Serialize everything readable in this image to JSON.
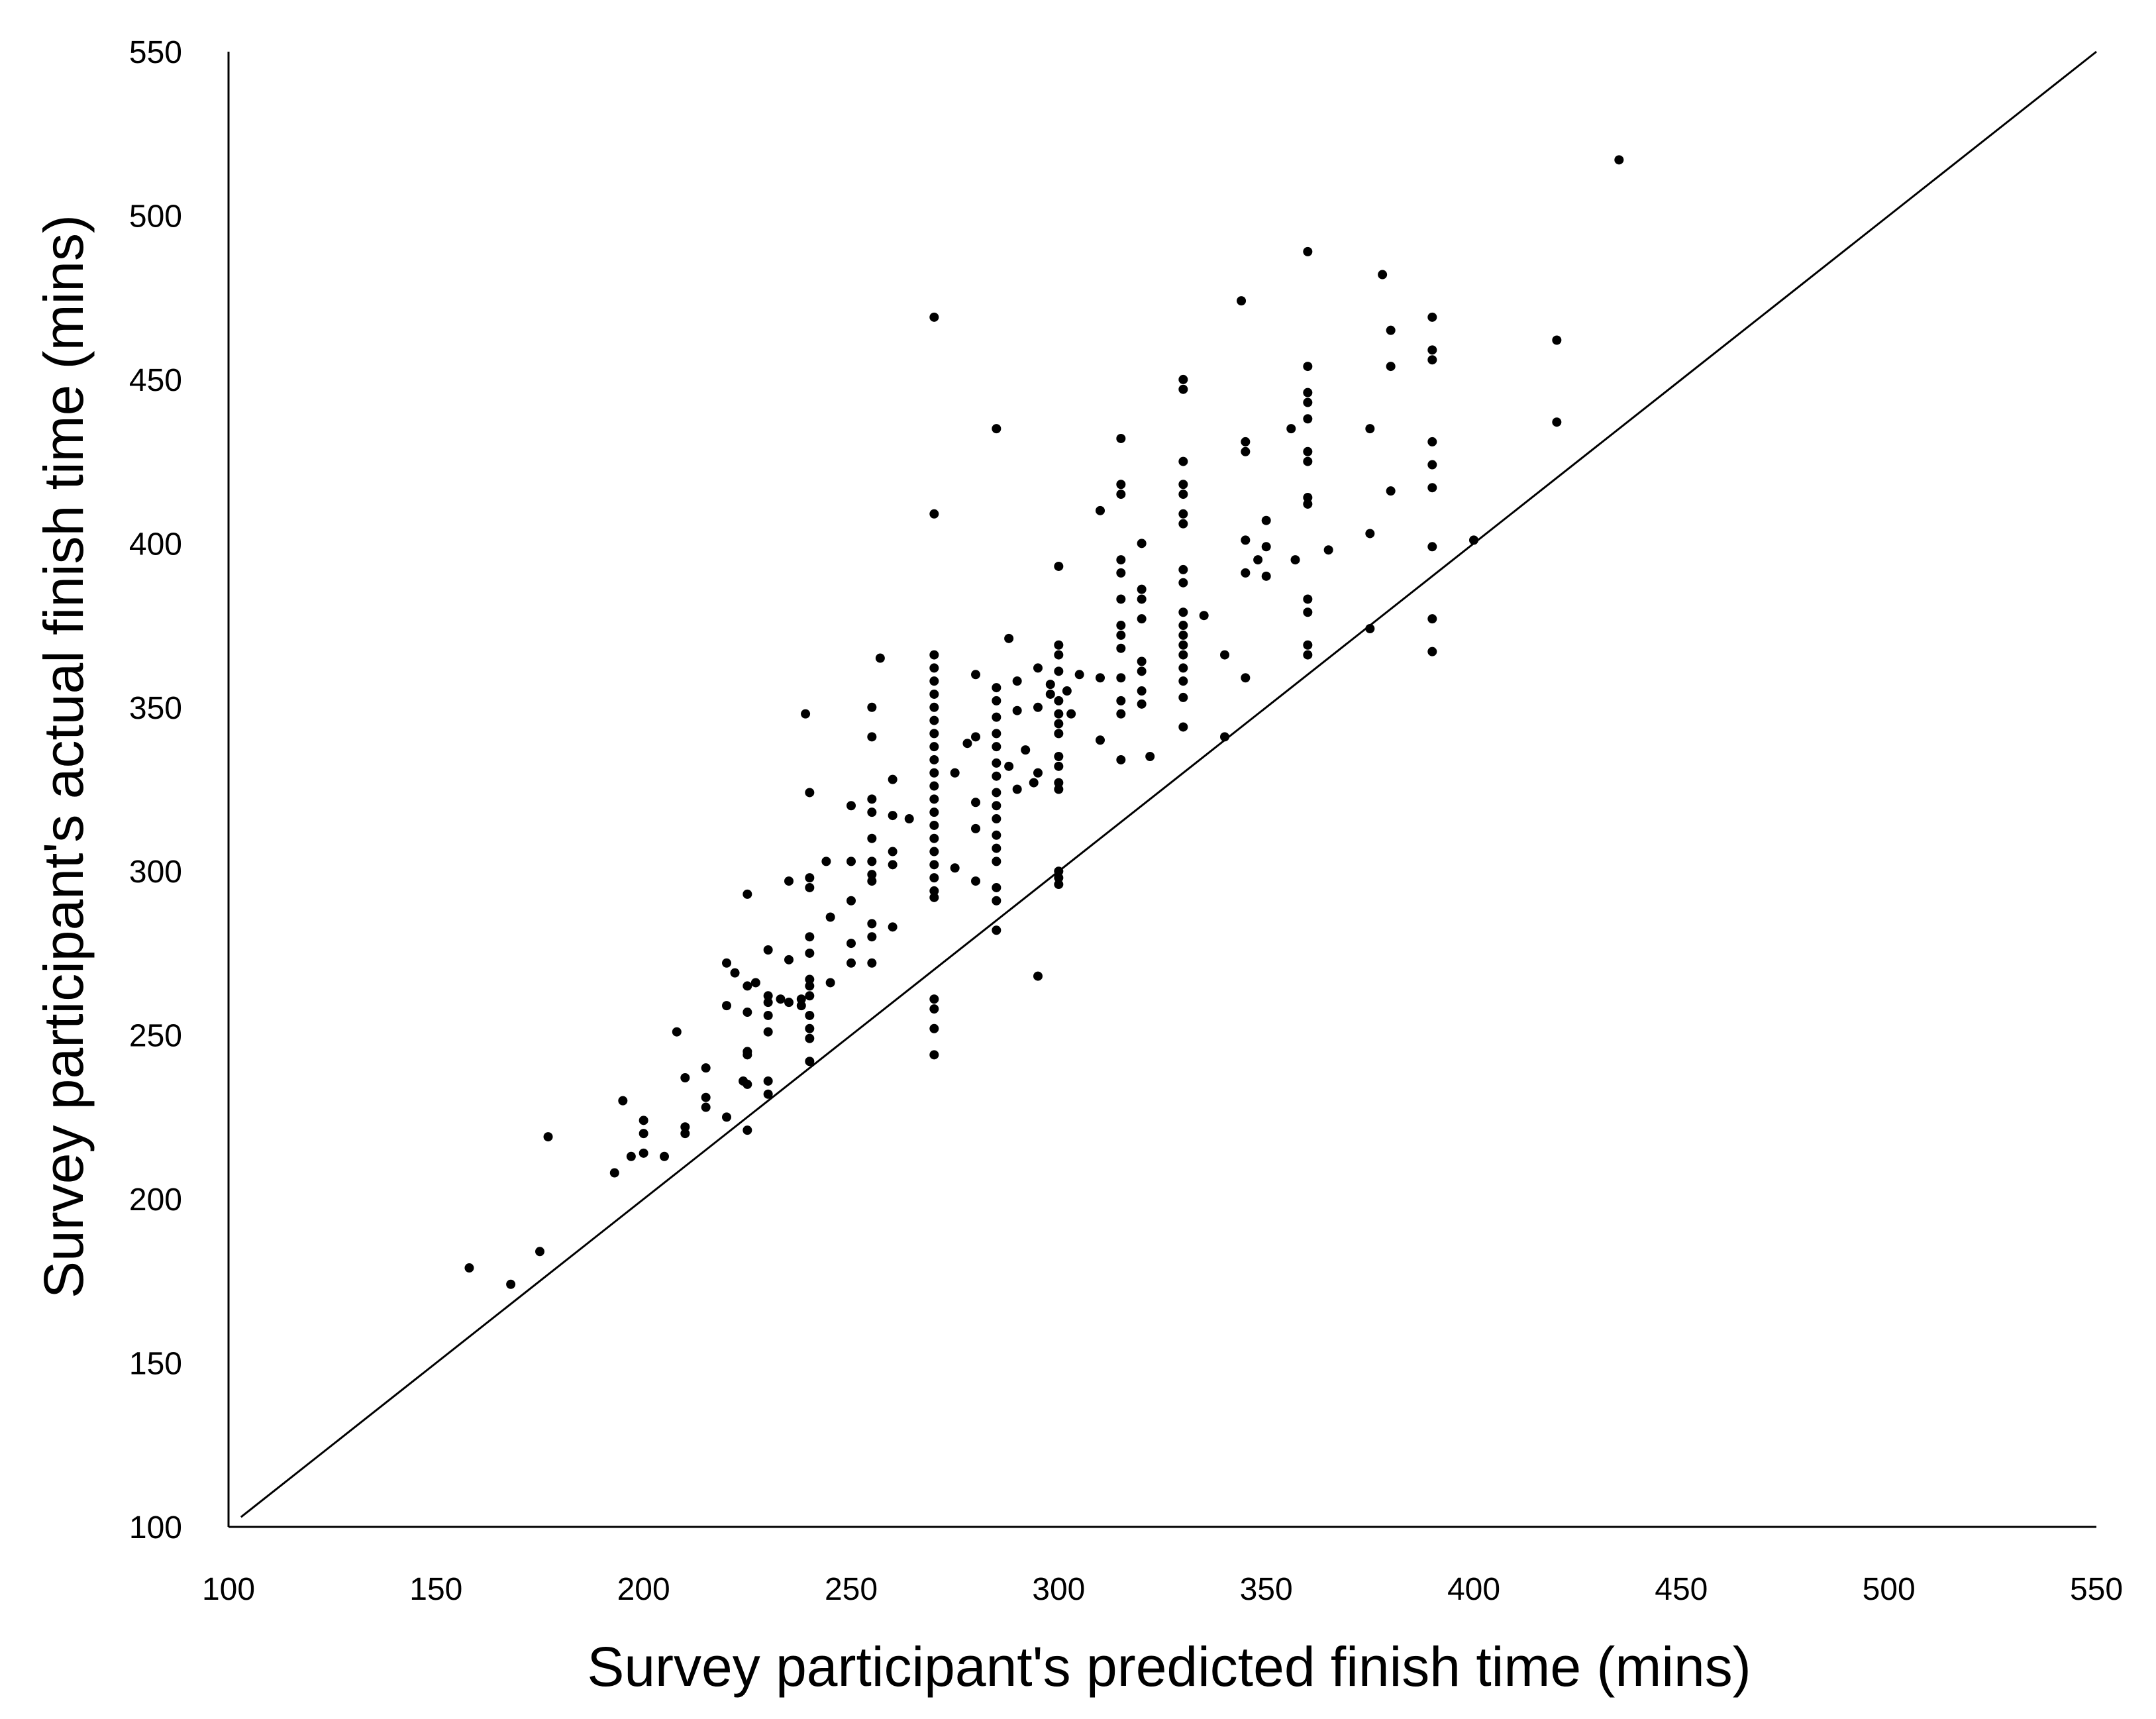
{
  "chart_data": {
    "type": "scatter",
    "title": "",
    "xlabel": "Survey participant's predicted finish time (mins)",
    "ylabel": "Survey participant's actual finish time (mins)",
    "xlim": [
      100,
      550
    ],
    "ylim": [
      100,
      550
    ],
    "x_ticks": [
      "100",
      "150",
      "200",
      "250",
      "300",
      "350",
      "400",
      "450",
      "500",
      "550"
    ],
    "y_ticks": [
      "100",
      "150",
      "200",
      "250",
      "300",
      "350",
      "400",
      "450",
      "500",
      "550"
    ],
    "grid": false,
    "legend": "none",
    "reference_line": {
      "type": "y=x",
      "from": [
        103,
        103
      ],
      "to": [
        550,
        550
      ]
    },
    "marker_color": "#000000",
    "line_color": "#000000",
    "points": [
      [
        158,
        179
      ],
      [
        168,
        174
      ],
      [
        175,
        184
      ],
      [
        177,
        219
      ],
      [
        193,
        208
      ],
      [
        195,
        230
      ],
      [
        197,
        213
      ],
      [
        200,
        214
      ],
      [
        200,
        220
      ],
      [
        200,
        224
      ],
      [
        205,
        213
      ],
      [
        208,
        251
      ],
      [
        210,
        222
      ],
      [
        210,
        220
      ],
      [
        210,
        237
      ],
      [
        215,
        228
      ],
      [
        215,
        240
      ],
      [
        215,
        231
      ],
      [
        220,
        225
      ],
      [
        220,
        259
      ],
      [
        220,
        272
      ],
      [
        222,
        269
      ],
      [
        224,
        236
      ],
      [
        225,
        221
      ],
      [
        225,
        235
      ],
      [
        225,
        293
      ],
      [
        225,
        265
      ],
      [
        225,
        257
      ],
      [
        225,
        245
      ],
      [
        225,
        244
      ],
      [
        227,
        266
      ],
      [
        230,
        276
      ],
      [
        230,
        262
      ],
      [
        230,
        260
      ],
      [
        230,
        256
      ],
      [
        230,
        251
      ],
      [
        230,
        236
      ],
      [
        230,
        232
      ],
      [
        233,
        261
      ],
      [
        235,
        297
      ],
      [
        235,
        273
      ],
      [
        235,
        260
      ],
      [
        238,
        261
      ],
      [
        238,
        259
      ],
      [
        239,
        348
      ],
      [
        240,
        324
      ],
      [
        240,
        298
      ],
      [
        240,
        295
      ],
      [
        240,
        280
      ],
      [
        240,
        275
      ],
      [
        240,
        267
      ],
      [
        240,
        265
      ],
      [
        240,
        262
      ],
      [
        240,
        256
      ],
      [
        240,
        252
      ],
      [
        240,
        249
      ],
      [
        240,
        242
      ],
      [
        244,
        303
      ],
      [
        245,
        286
      ],
      [
        245,
        266
      ],
      [
        250,
        320
      ],
      [
        250,
        303
      ],
      [
        250,
        291
      ],
      [
        250,
        278
      ],
      [
        250,
        272
      ],
      [
        255,
        350
      ],
      [
        255,
        341
      ],
      [
        255,
        322
      ],
      [
        255,
        318
      ],
      [
        255,
        310
      ],
      [
        255,
        303
      ],
      [
        255,
        299
      ],
      [
        255,
        297
      ],
      [
        255,
        284
      ],
      [
        255,
        280
      ],
      [
        255,
        272
      ],
      [
        257,
        365
      ],
      [
        260,
        328
      ],
      [
        260,
        317
      ],
      [
        260,
        306
      ],
      [
        260,
        302
      ],
      [
        260,
        283
      ],
      [
        264,
        316
      ],
      [
        270,
        469
      ],
      [
        270,
        409
      ],
      [
        270,
        366
      ],
      [
        270,
        362
      ],
      [
        270,
        358
      ],
      [
        270,
        354
      ],
      [
        270,
        350
      ],
      [
        270,
        346
      ],
      [
        270,
        342
      ],
      [
        270,
        338
      ],
      [
        270,
        334
      ],
      [
        270,
        330
      ],
      [
        270,
        326
      ],
      [
        270,
        322
      ],
      [
        270,
        318
      ],
      [
        270,
        314
      ],
      [
        270,
        310
      ],
      [
        270,
        306
      ],
      [
        270,
        302
      ],
      [
        270,
        298
      ],
      [
        270,
        294
      ],
      [
        270,
        292
      ],
      [
        270,
        261
      ],
      [
        270,
        258
      ],
      [
        270,
        252
      ],
      [
        270,
        244
      ],
      [
        275,
        330
      ],
      [
        275,
        301
      ],
      [
        278,
        339
      ],
      [
        280,
        360
      ],
      [
        280,
        341
      ],
      [
        280,
        321
      ],
      [
        280,
        313
      ],
      [
        280,
        297
      ],
      [
        285,
        435
      ],
      [
        285,
        356
      ],
      [
        285,
        352
      ],
      [
        285,
        347
      ],
      [
        285,
        342
      ],
      [
        285,
        338
      ],
      [
        285,
        333
      ],
      [
        285,
        329
      ],
      [
        285,
        324
      ],
      [
        285,
        320
      ],
      [
        285,
        316
      ],
      [
        285,
        311
      ],
      [
        285,
        307
      ],
      [
        285,
        303
      ],
      [
        285,
        295
      ],
      [
        285,
        291
      ],
      [
        285,
        282
      ],
      [
        288,
        371
      ],
      [
        288,
        332
      ],
      [
        290,
        358
      ],
      [
        290,
        349
      ],
      [
        290,
        325
      ],
      [
        292,
        337
      ],
      [
        294,
        327
      ],
      [
        295,
        362
      ],
      [
        295,
        350
      ],
      [
        295,
        330
      ],
      [
        295,
        268
      ],
      [
        298,
        357
      ],
      [
        298,
        354
      ],
      [
        300,
        393
      ],
      [
        300,
        369
      ],
      [
        300,
        366
      ],
      [
        300,
        361
      ],
      [
        300,
        352
      ],
      [
        300,
        348
      ],
      [
        300,
        345
      ],
      [
        300,
        342
      ],
      [
        300,
        335
      ],
      [
        300,
        332
      ],
      [
        300,
        327
      ],
      [
        300,
        325
      ],
      [
        300,
        300
      ],
      [
        300,
        298
      ],
      [
        300,
        296
      ],
      [
        302,
        355
      ],
      [
        303,
        348
      ],
      [
        305,
        360
      ],
      [
        310,
        410
      ],
      [
        310,
        359
      ],
      [
        310,
        340
      ],
      [
        315,
        432
      ],
      [
        315,
        418
      ],
      [
        315,
        415
      ],
      [
        315,
        395
      ],
      [
        315,
        391
      ],
      [
        315,
        383
      ],
      [
        315,
        375
      ],
      [
        315,
        372
      ],
      [
        315,
        368
      ],
      [
        315,
        359
      ],
      [
        315,
        352
      ],
      [
        315,
        348
      ],
      [
        315,
        334
      ],
      [
        320,
        400
      ],
      [
        320,
        386
      ],
      [
        320,
        383
      ],
      [
        320,
        377
      ],
      [
        320,
        364
      ],
      [
        320,
        361
      ],
      [
        320,
        355
      ],
      [
        320,
        351
      ],
      [
        322,
        335
      ],
      [
        330,
        450
      ],
      [
        330,
        447
      ],
      [
        330,
        425
      ],
      [
        330,
        418
      ],
      [
        330,
        415
      ],
      [
        330,
        409
      ],
      [
        330,
        406
      ],
      [
        330,
        392
      ],
      [
        330,
        388
      ],
      [
        330,
        379
      ],
      [
        330,
        375
      ],
      [
        330,
        372
      ],
      [
        330,
        369
      ],
      [
        330,
        366
      ],
      [
        330,
        362
      ],
      [
        330,
        358
      ],
      [
        330,
        353
      ],
      [
        330,
        344
      ],
      [
        335,
        378
      ],
      [
        340,
        366
      ],
      [
        340,
        341
      ],
      [
        344,
        474
      ],
      [
        345,
        431
      ],
      [
        345,
        428
      ],
      [
        345,
        401
      ],
      [
        345,
        391
      ],
      [
        345,
        359
      ],
      [
        348,
        395
      ],
      [
        350,
        407
      ],
      [
        350,
        399
      ],
      [
        350,
        390
      ],
      [
        356,
        435
      ],
      [
        357,
        395
      ],
      [
        360,
        489
      ],
      [
        360,
        454
      ],
      [
        360,
        446
      ],
      [
        360,
        443
      ],
      [
        360,
        438
      ],
      [
        360,
        428
      ],
      [
        360,
        425
      ],
      [
        360,
        414
      ],
      [
        360,
        412
      ],
      [
        360,
        383
      ],
      [
        360,
        379
      ],
      [
        360,
        369
      ],
      [
        360,
        366
      ],
      [
        365,
        398
      ],
      [
        375,
        374
      ],
      [
        375,
        435
      ],
      [
        375,
        403
      ],
      [
        378,
        482
      ],
      [
        380,
        465
      ],
      [
        380,
        454
      ],
      [
        380,
        416
      ],
      [
        390,
        469
      ],
      [
        390,
        459
      ],
      [
        390,
        456
      ],
      [
        390,
        431
      ],
      [
        390,
        424
      ],
      [
        390,
        417
      ],
      [
        390,
        399
      ],
      [
        390,
        377
      ],
      [
        390,
        367
      ],
      [
        400,
        401
      ],
      [
        420,
        462
      ],
      [
        420,
        437
      ],
      [
        435,
        517
      ]
    ]
  }
}
